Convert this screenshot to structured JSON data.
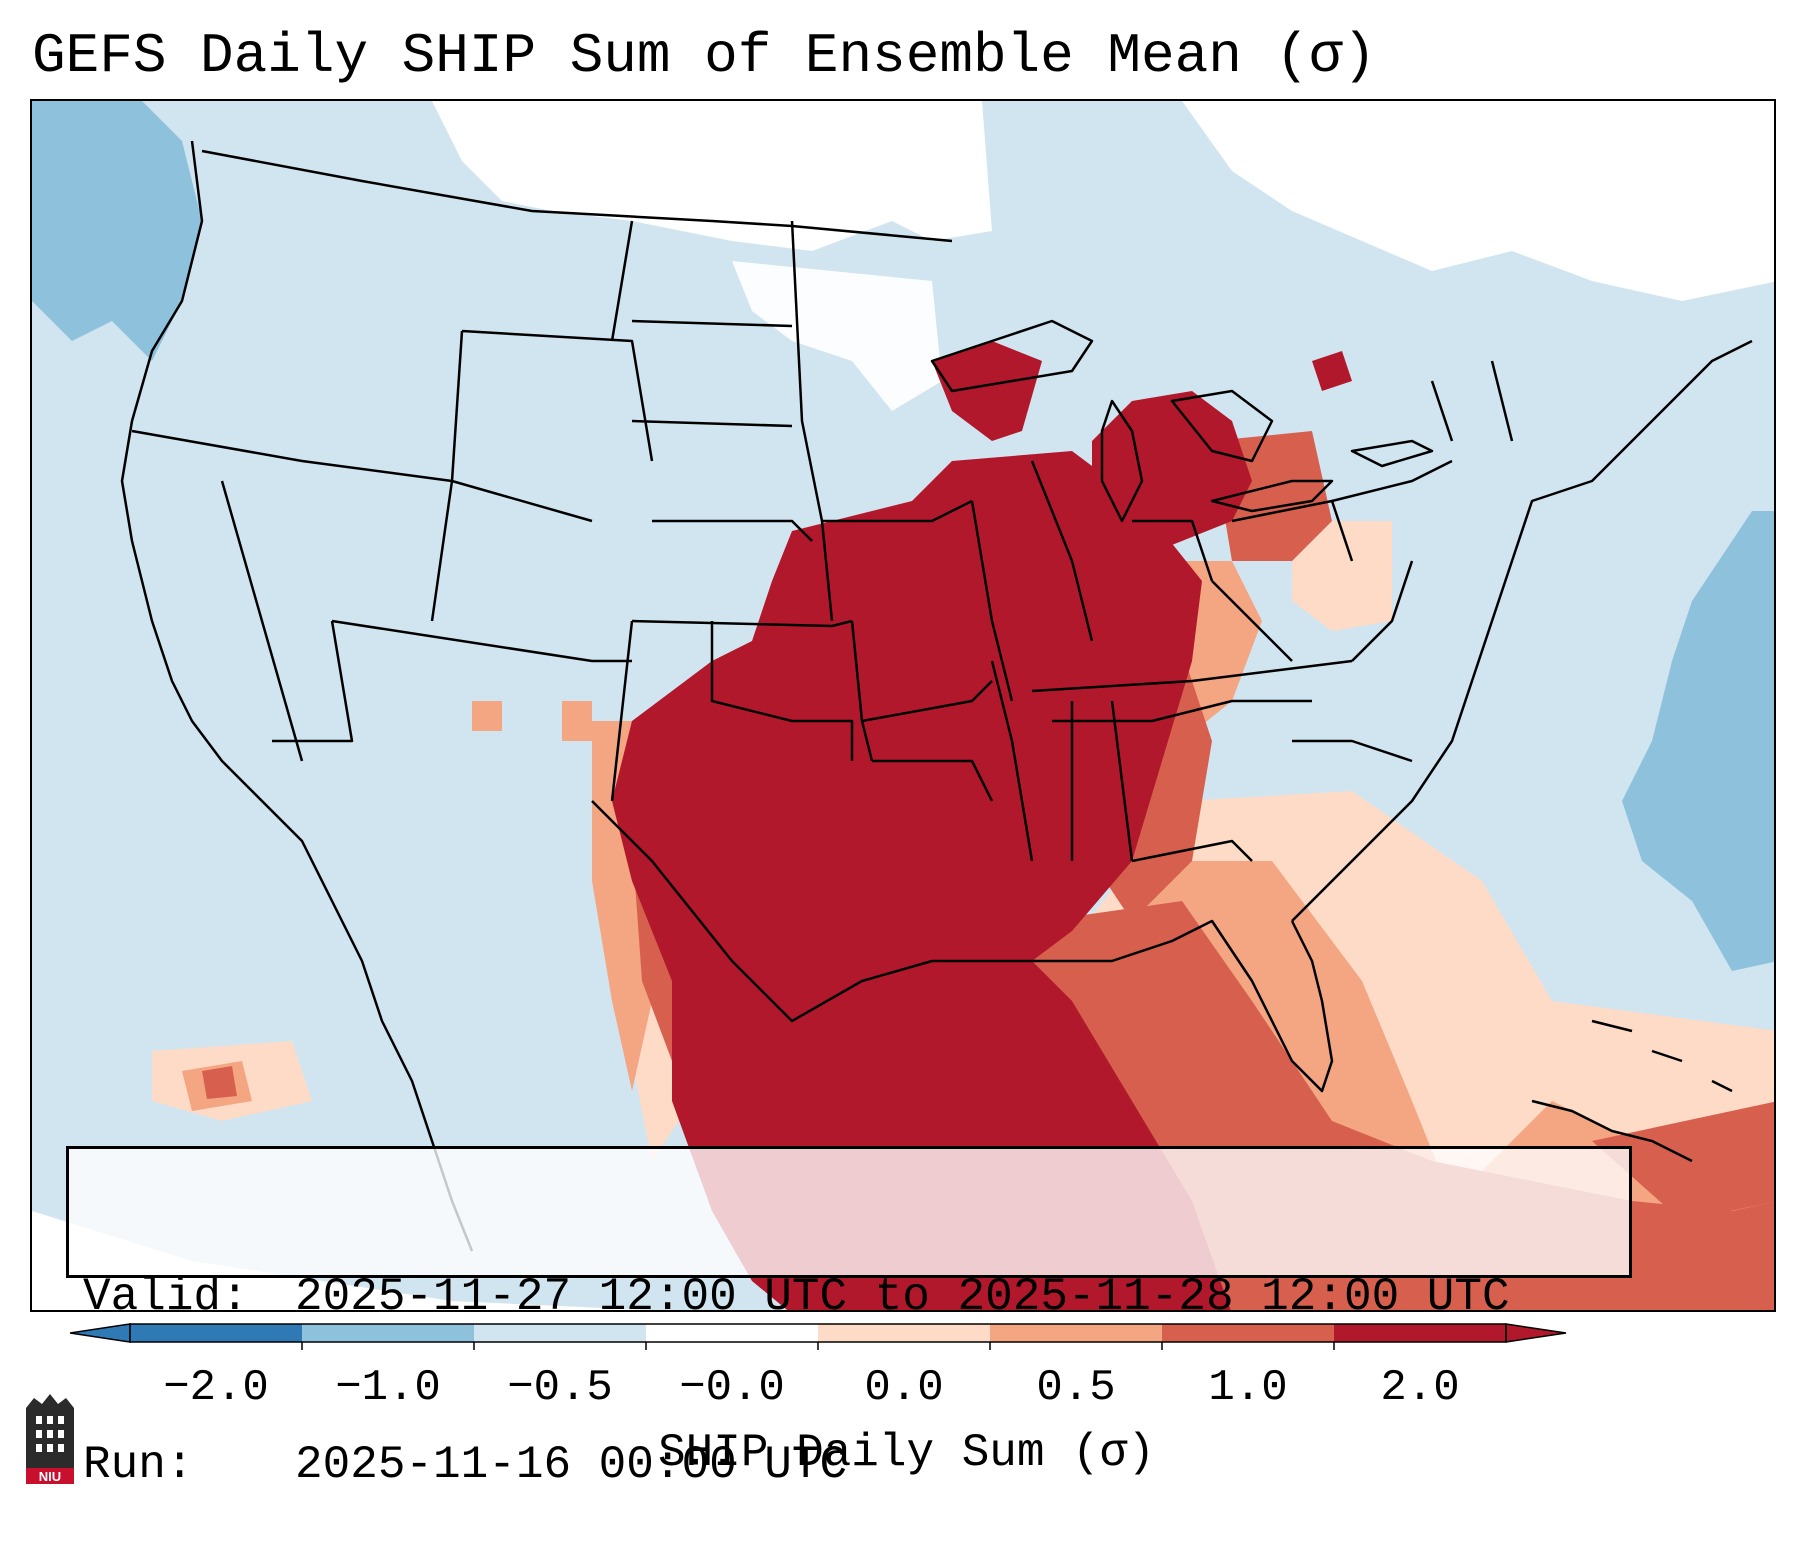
{
  "title": "GEFS Daily SHIP Sum of Ensemble Mean (σ)",
  "info": {
    "valid_label": "Valid:",
    "valid_value": "2025-11-27 12:00 UTC to 2025-11-28 12:00 UTC",
    "run_label": "Run:",
    "run_value": "2025-11-16 00:00 UTC"
  },
  "colorbar": {
    "label": "SHIP Daily Sum (σ)",
    "ticks": [
      "−2.0",
      "−1.0",
      "−0.5",
      "−0.0",
      "0.0",
      "0.5",
      "1.0",
      "2.0"
    ],
    "colors": [
      "#2f79b5",
      "#8ec1dc",
      "#d1e5f0",
      "#ffffff",
      "#fddbc7",
      "#f4a582",
      "#d6604d",
      "#b2182b"
    ],
    "extend": "both"
  },
  "map": {
    "region": "Continental United States",
    "background_color": "#d1e5f0",
    "ocean_negative_color": "#8ec1dc",
    "high_color": "#b2182b",
    "moderate_color": "#d6604d",
    "low_color": "#f4a582",
    "slight_color": "#fddbc7"
  },
  "logo": {
    "text": "NIU"
  }
}
